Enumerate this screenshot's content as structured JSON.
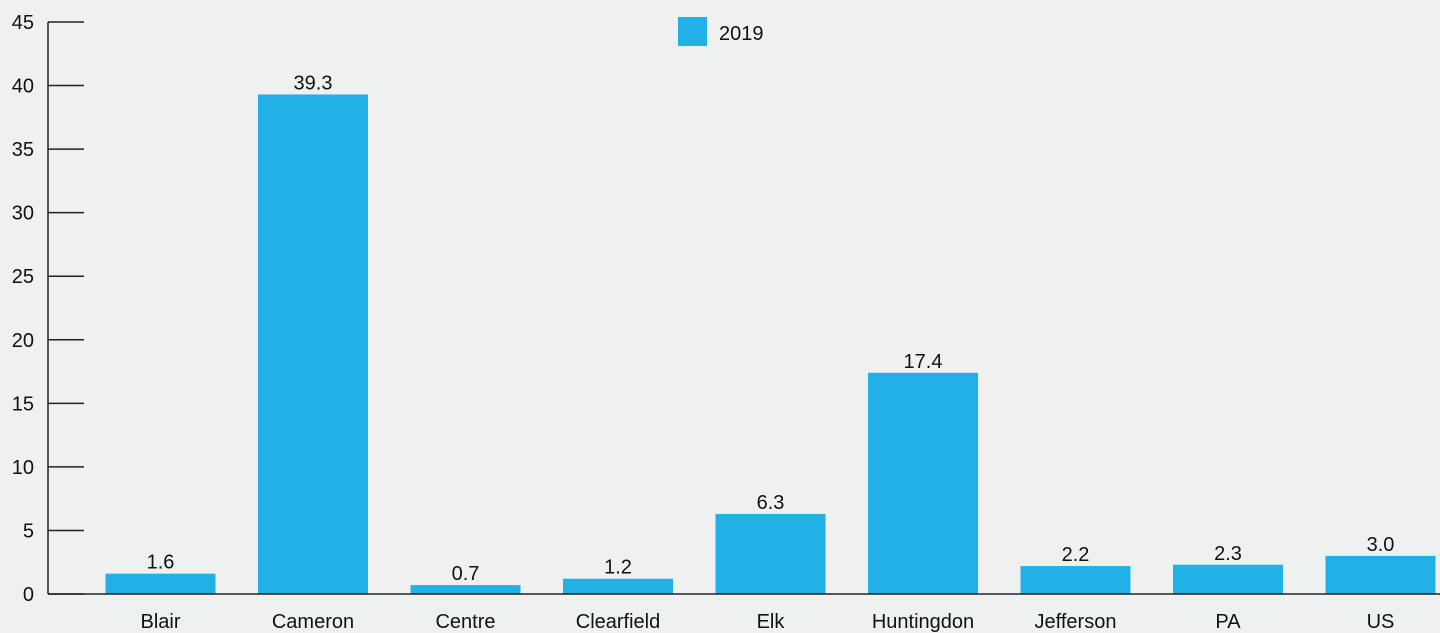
{
  "chart_data": {
    "type": "bar",
    "categories": [
      "Blair",
      "Cameron",
      "Centre",
      "Clearfield",
      "Elk",
      "Huntingdon",
      "Jefferson",
      "PA",
      "US"
    ],
    "series": [
      {
        "name": "2019",
        "values": [
          1.6,
          39.3,
          0.7,
          1.2,
          6.3,
          17.4,
          2.2,
          2.3,
          3.0
        ],
        "labels": [
          "1.6",
          "39.3",
          "0.7",
          "1.2",
          "6.3",
          "17.4",
          "2.2",
          "2.3",
          "3.0"
        ],
        "color": "#22b1e6"
      }
    ],
    "title": "",
    "xlabel": "",
    "ylabel": "",
    "ylim": [
      0,
      45
    ],
    "yticks": [
      0,
      5,
      10,
      15,
      20,
      25,
      30,
      35,
      40,
      45
    ],
    "grid": false,
    "legend": "top-center"
  },
  "colors": {
    "background": "#eff0f0",
    "axis": "#222222",
    "text": "#111111"
  }
}
